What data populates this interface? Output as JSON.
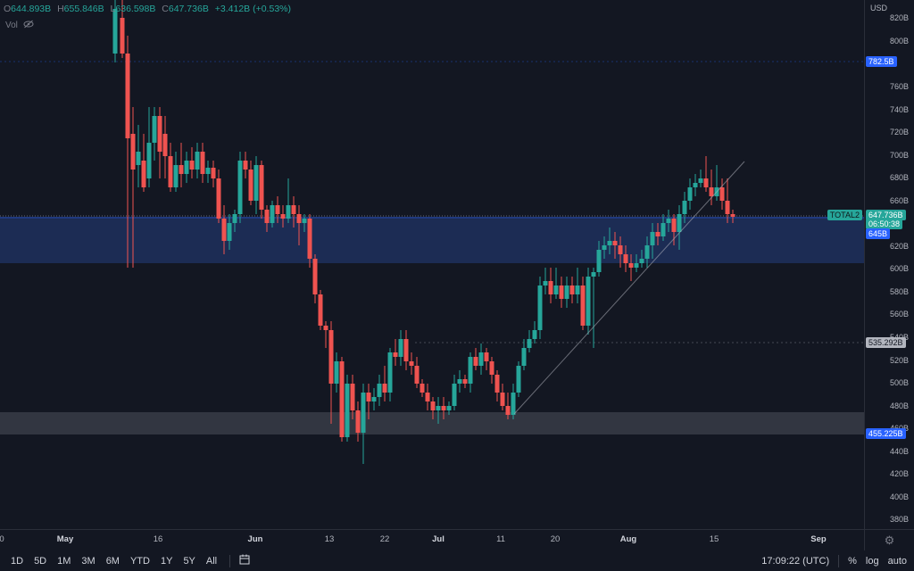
{
  "ohlc": {
    "o_key": "O",
    "o_val": "644.893B",
    "h_key": "H",
    "h_val": "655.846B",
    "l_key": "L",
    "l_val": "636.598B",
    "c_key": "C",
    "c_val": "647.736B",
    "change": "+3.412B (+0.53%)"
  },
  "volume": {
    "label": "Vol",
    "icon": "eye-hidden-icon"
  },
  "price_axis": {
    "currency": "USD",
    "ticks": [
      "820B",
      "800B",
      "760B",
      "740B",
      "720B",
      "700B",
      "680B",
      "660B",
      "620B",
      "600B",
      "580B",
      "560B",
      "540B",
      "520B",
      "500B",
      "480B",
      "460B",
      "440B",
      "420B",
      "400B",
      "380B"
    ],
    "labels": {
      "p782": "782.5B",
      "current": "647.736B",
      "countdown": "06:50:38",
      "p645": "645B",
      "p535": "535.292B",
      "p455": "455.225B"
    },
    "symbol_badge": "TOTAL2"
  },
  "time_axis": {
    "labels": [
      {
        "text": "0",
        "bold": false
      },
      {
        "text": "May",
        "bold": true
      },
      {
        "text": "16",
        "bold": false
      },
      {
        "text": "Jun",
        "bold": true
      },
      {
        "text": "13",
        "bold": false
      },
      {
        "text": "22",
        "bold": false
      },
      {
        "text": "Jul",
        "bold": true
      },
      {
        "text": "11",
        "bold": false
      },
      {
        "text": "20",
        "bold": false
      },
      {
        "text": "Aug",
        "bold": true
      },
      {
        "text": "15",
        "bold": false
      },
      {
        "text": "Sep",
        "bold": true
      }
    ]
  },
  "bottom_bar": {
    "ranges": [
      "1D",
      "5D",
      "1M",
      "3M",
      "6M",
      "YTD",
      "1Y",
      "5Y",
      "All"
    ],
    "time": "17:09:22 (UTC)",
    "percent": "%",
    "log": "log",
    "auto": "auto"
  },
  "colors": {
    "up": "#26a69a",
    "down": "#ef5350",
    "zone_blue": "#1e2f5a",
    "zone_gray": "#363a45",
    "badge_blue": "#2962ff"
  }
}
